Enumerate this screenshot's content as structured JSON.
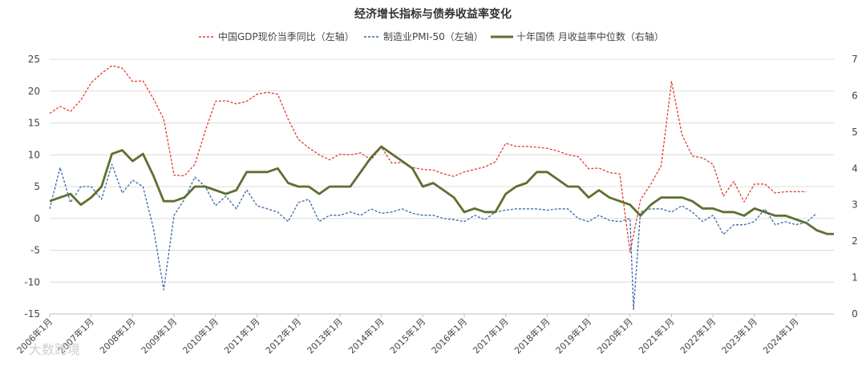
{
  "chart_data": {
    "type": "line",
    "title": "经济增长指标与债券收益率变化",
    "legend": [
      "中国GDP现价当季同比（左轴）",
      "制造业PMI-50（左轴）",
      "十年国债 月收益率中位数（右轴）"
    ],
    "legend_position": "top",
    "y_left": {
      "min": -15,
      "max": 25,
      "step": 5,
      "ticks": [
        "25",
        "20",
        "15",
        "10",
        "5",
        "0",
        "-5",
        "-10",
        "-15"
      ]
    },
    "y_right": {
      "min": 0,
      "max": 7,
      "step": 1,
      "ticks": [
        "7",
        "6",
        "5",
        "4",
        "3",
        "2",
        "1",
        "0"
      ]
    },
    "x_range": [
      "2006-01",
      "2024-12"
    ],
    "x_ticks": [
      "2006年1月",
      "2007年1月",
      "2008年1月",
      "2009年1月",
      "2010年1月",
      "2011年1月",
      "2012年1月",
      "2013年1月",
      "2014年1月",
      "2015年1月",
      "2016年1月",
      "2017年1月",
      "2018年1月",
      "2019年1月",
      "2020年1月",
      "2021年1月",
      "2022年1月",
      "2023年1月",
      "2024年1月"
    ],
    "grid": "horizontal",
    "series": [
      {
        "name": "中国GDP现价当季同比（左轴）",
        "axis": "left",
        "color": "#e03c31",
        "style": "dashed",
        "x": [
          "2006-01",
          "2006-04",
          "2006-07",
          "2006-10",
          "2007-01",
          "2007-04",
          "2007-07",
          "2007-10",
          "2008-01",
          "2008-04",
          "2008-07",
          "2008-10",
          "2009-01",
          "2009-04",
          "2009-07",
          "2009-10",
          "2010-01",
          "2010-04",
          "2010-07",
          "2010-10",
          "2011-01",
          "2011-04",
          "2011-07",
          "2011-10",
          "2012-01",
          "2012-04",
          "2012-07",
          "2012-10",
          "2013-01",
          "2013-04",
          "2013-07",
          "2013-10",
          "2014-01",
          "2014-04",
          "2014-07",
          "2014-10",
          "2015-01",
          "2015-04",
          "2015-07",
          "2015-10",
          "2016-01",
          "2016-04",
          "2016-07",
          "2016-10",
          "2017-01",
          "2017-04",
          "2017-07",
          "2017-10",
          "2018-01",
          "2018-04",
          "2018-07",
          "2018-10",
          "2019-01",
          "2019-04",
          "2019-07",
          "2019-10",
          "2020-01",
          "2020-04",
          "2020-07",
          "2020-10",
          "2021-01",
          "2021-04",
          "2021-07",
          "2021-10",
          "2022-01",
          "2022-04",
          "2022-07",
          "2022-10",
          "2023-01",
          "2023-04",
          "2023-07",
          "2023-10",
          "2024-01",
          "2024-04"
        ],
        "values": [
          16.5,
          17.6,
          16.8,
          18.6,
          21.3,
          22.8,
          24.0,
          23.6,
          21.5,
          21.6,
          18.8,
          15.6,
          6.8,
          6.7,
          8.5,
          13.7,
          18.4,
          18.5,
          18.0,
          18.4,
          19.5,
          19.8,
          19.5,
          15.6,
          12.4,
          11.1,
          10.0,
          9.2,
          10.1,
          10.0,
          10.3,
          9.2,
          11.2,
          8.7,
          8.8,
          8.0,
          7.7,
          7.6,
          7.0,
          6.6,
          7.3,
          7.7,
          8.1,
          8.9,
          11.8,
          11.3,
          11.3,
          11.2,
          11.0,
          10.6,
          10.0,
          9.7,
          7.8,
          7.9,
          7.2,
          7.0,
          -5.3,
          2.9,
          5.4,
          8.3,
          21.5,
          13.2,
          9.8,
          9.5,
          8.5,
          3.5,
          5.8,
          2.6,
          5.4,
          5.4,
          4.0,
          4.2,
          4.2,
          4.2
        ]
      },
      {
        "name": "制造业PMI-50（左轴）",
        "axis": "left",
        "color": "#3b67a8",
        "style": "dashed",
        "x": [
          "2006-01",
          "2006-04",
          "2006-07",
          "2006-10",
          "2007-01",
          "2007-04",
          "2007-07",
          "2007-10",
          "2008-01",
          "2008-04",
          "2008-07",
          "2008-10",
          "2009-01",
          "2009-04",
          "2009-07",
          "2009-10",
          "2010-01",
          "2010-04",
          "2010-07",
          "2010-10",
          "2011-01",
          "2011-04",
          "2011-07",
          "2011-10",
          "2012-01",
          "2012-04",
          "2012-07",
          "2012-10",
          "2013-01",
          "2013-04",
          "2013-07",
          "2013-10",
          "2014-01",
          "2014-04",
          "2014-07",
          "2014-10",
          "2015-01",
          "2015-04",
          "2015-07",
          "2015-10",
          "2016-01",
          "2016-04",
          "2016-07",
          "2016-10",
          "2017-01",
          "2017-04",
          "2017-07",
          "2017-10",
          "2018-01",
          "2018-04",
          "2018-07",
          "2018-10",
          "2019-01",
          "2019-04",
          "2019-07",
          "2019-10",
          "2020-01",
          "2020-02",
          "2020-04",
          "2020-07",
          "2020-10",
          "2021-01",
          "2021-04",
          "2021-07",
          "2021-10",
          "2022-01",
          "2022-04",
          "2022-07",
          "2022-10",
          "2023-01",
          "2023-04",
          "2023-07",
          "2023-10",
          "2024-01",
          "2024-04",
          "2024-07"
        ],
        "values": [
          1.5,
          8.0,
          2.5,
          5.0,
          5.0,
          3.0,
          8.5,
          4.0,
          6.0,
          5.0,
          -1.5,
          -11.2,
          0.5,
          3.0,
          6.5,
          5.0,
          2.0,
          3.5,
          1.5,
          4.5,
          2.0,
          1.5,
          1.0,
          -0.5,
          2.5,
          3.0,
          -0.5,
          0.5,
          0.5,
          1.0,
          0.5,
          1.5,
          0.8,
          1.0,
          1.5,
          0.8,
          0.5,
          0.5,
          0.0,
          -0.2,
          -0.5,
          0.5,
          -0.2,
          1.0,
          1.3,
          1.5,
          1.5,
          1.5,
          1.3,
          1.5,
          1.5,
          0.0,
          -0.5,
          0.5,
          -0.3,
          -0.5,
          0.0,
          -14.3,
          1.0,
          1.5,
          1.5,
          1.0,
          2.0,
          1.0,
          -0.5,
          0.5,
          -2.5,
          -1.0,
          -1.0,
          -0.5,
          1.5,
          -1.0,
          -0.5,
          -1.0,
          -0.6,
          0.8
        ]
      },
      {
        "name": "十年国债 月收益率中位数（右轴）",
        "axis": "right",
        "color": "#5d7030",
        "style": "solid",
        "x": [
          "2006-01",
          "2006-04",
          "2006-07",
          "2006-10",
          "2007-01",
          "2007-04",
          "2007-07",
          "2007-10",
          "2008-01",
          "2008-04",
          "2008-07",
          "2008-10",
          "2009-01",
          "2009-04",
          "2009-07",
          "2009-10",
          "2010-01",
          "2010-04",
          "2010-07",
          "2010-10",
          "2011-01",
          "2011-04",
          "2011-07",
          "2011-10",
          "2012-01",
          "2012-04",
          "2012-07",
          "2012-10",
          "2013-01",
          "2013-04",
          "2013-07",
          "2013-10",
          "2014-01",
          "2014-04",
          "2014-07",
          "2014-10",
          "2015-01",
          "2015-04",
          "2015-07",
          "2015-10",
          "2016-01",
          "2016-04",
          "2016-07",
          "2016-10",
          "2017-01",
          "2017-04",
          "2017-07",
          "2017-10",
          "2018-01",
          "2018-04",
          "2018-07",
          "2018-10",
          "2019-01",
          "2019-04",
          "2019-07",
          "2019-10",
          "2020-01",
          "2020-04",
          "2020-07",
          "2020-10",
          "2021-01",
          "2021-04",
          "2021-07",
          "2021-10",
          "2022-01",
          "2022-04",
          "2022-07",
          "2022-10",
          "2023-01",
          "2023-04",
          "2023-07",
          "2023-10",
          "2024-01",
          "2024-04",
          "2024-07",
          "2024-10",
          "2024-12"
        ],
        "values": [
          3.1,
          3.2,
          3.3,
          3.0,
          3.2,
          3.5,
          4.4,
          4.5,
          4.2,
          4.4,
          3.8,
          3.1,
          3.1,
          3.2,
          3.5,
          3.5,
          3.4,
          3.3,
          3.4,
          3.9,
          3.9,
          3.9,
          4.0,
          3.6,
          3.5,
          3.5,
          3.3,
          3.5,
          3.5,
          3.5,
          3.9,
          4.3,
          4.6,
          4.4,
          4.2,
          4.0,
          3.5,
          3.6,
          3.4,
          3.2,
          2.8,
          2.9,
          2.8,
          2.8,
          3.3,
          3.5,
          3.6,
          3.9,
          3.9,
          3.7,
          3.5,
          3.5,
          3.2,
          3.4,
          3.2,
          3.1,
          3.0,
          2.7,
          3.0,
          3.2,
          3.2,
          3.2,
          3.1,
          2.9,
          2.9,
          2.8,
          2.8,
          2.7,
          2.9,
          2.8,
          2.7,
          2.7,
          2.6,
          2.5,
          2.3,
          2.2,
          2.2
        ]
      }
    ]
  },
  "watermark": "大数跨境"
}
